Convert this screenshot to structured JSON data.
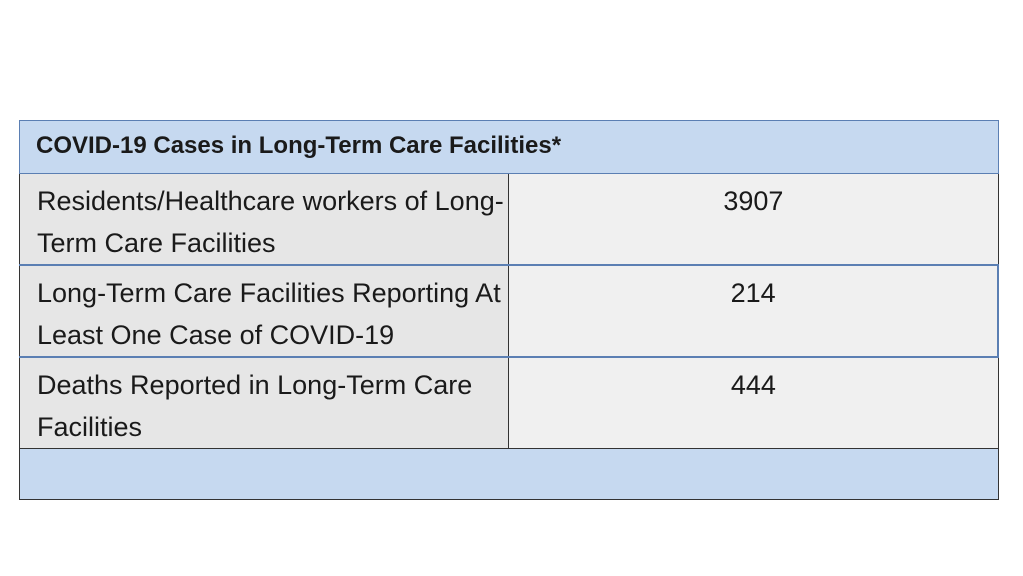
{
  "table": {
    "title": "COVID-19 Cases in Long-Term Care Facilities*",
    "rows": [
      {
        "label": "Residents/Healthcare workers of Long-Term Care Facilities",
        "value": "3907"
      },
      {
        "label": "Long-Term Care Facilities Reporting At Least One Case of COVID-19",
        "value": "214"
      },
      {
        "label": "Deaths Reported in Long-Term Care Facilities",
        "value": "444"
      }
    ],
    "colors": {
      "header_fill": "#c6d9f0",
      "label_fill": "#e6e6e6",
      "value_fill": "#f0f0f0",
      "accent_border": "#5b7fb3"
    }
  }
}
